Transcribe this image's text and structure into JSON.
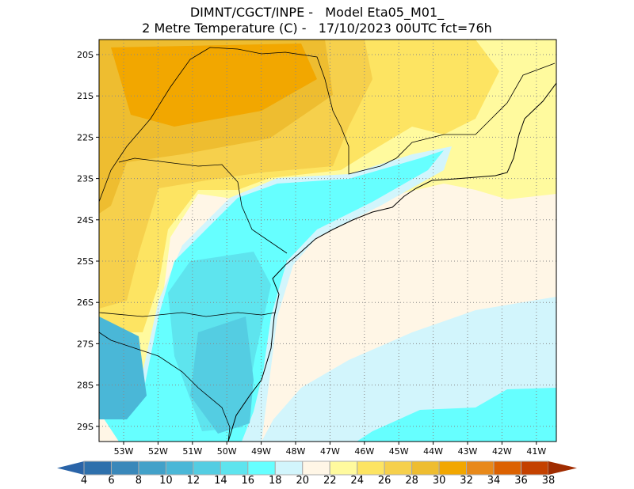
{
  "title": {
    "line1": "DIMNT/CGCT/INPE -   Model Eta05_M01_",
    "line2": "2 Metre Temperature (C) -   17/10/2023 00UTC fct=76h"
  },
  "map": {
    "lat_labels": [
      "20S",
      "21S",
      "22S",
      "23S",
      "24S",
      "25S",
      "26S",
      "27S",
      "28S",
      "29S"
    ],
    "lon_labels": [
      "53W",
      "52W",
      "51W",
      "50W",
      "49W",
      "48W",
      "47W",
      "46W",
      "45W",
      "44W",
      "43W",
      "42W",
      "41W"
    ]
  },
  "colorbar": {
    "labels": [
      "4",
      "6",
      "8",
      "10",
      "12",
      "14",
      "16",
      "18",
      "20",
      "22",
      "24",
      "26",
      "28",
      "30",
      "32",
      "34",
      "36",
      "38"
    ],
    "colors": [
      "#2e70ac",
      "#3a88ba",
      "#42a1c9",
      "#4ab7d7",
      "#54cde2",
      "#5ee4ee",
      "#66ffff",
      "#d2f5fc",
      "#fff6e6",
      "#fffa9e",
      "#fde462",
      "#f6d04c",
      "#eebd30",
      "#f2a700",
      "#e8891a",
      "#dc6100",
      "#c44100"
    ],
    "low_color": "#2a64a8",
    "high_color": "#a02c00"
  }
}
